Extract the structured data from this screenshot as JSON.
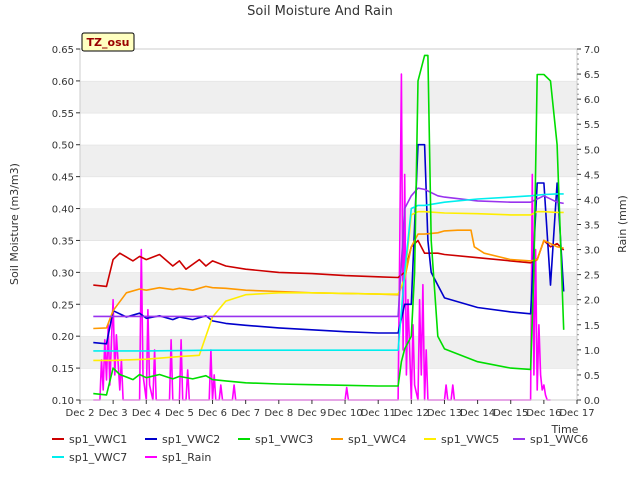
{
  "chart_data": {
    "type": "line",
    "title": "Soil Moisture And Rain",
    "badge": "TZ_osu",
    "xlabel": "Time",
    "ylabel_left": "Soil Moisture (m3/m3)",
    "ylabel_right": "Rain (mm)",
    "x_ticks": [
      "Dec 2",
      "Dec 3",
      "Dec 4",
      "Dec 5",
      "Dec 6",
      "Dec 7",
      "Dec 8",
      "Dec 9",
      "Dec 10",
      "Dec 11",
      "Dec 12",
      "Dec 13",
      "Dec 14",
      "Dec 15",
      "Dec 16",
      "Dec 17"
    ],
    "x_range_days": [
      2,
      17
    ],
    "y_left_range": [
      0.1,
      0.65
    ],
    "y_left_ticks": [
      "0.10",
      "0.15",
      "0.20",
      "0.25",
      "0.30",
      "0.35",
      "0.40",
      "0.45",
      "0.50",
      "0.55",
      "0.60",
      "0.65"
    ],
    "y_right_range": [
      0.0,
      7.0
    ],
    "y_right_ticks": [
      "0.0",
      "0.5",
      "1.0",
      "1.5",
      "2.0",
      "2.5",
      "3.0",
      "3.5",
      "4.0",
      "4.5",
      "5.0",
      "5.5",
      "6.0",
      "6.5",
      "7.0"
    ],
    "grid": "horizontal-bands",
    "legend_position": "bottom",
    "series": [
      {
        "name": "sp1_VWC1",
        "color": "#cc0000",
        "axis": "left",
        "x": [
          2.4,
          2.8,
          3.0,
          3.2,
          3.6,
          3.8,
          4.0,
          4.4,
          4.8,
          5.0,
          5.2,
          5.6,
          5.8,
          6.0,
          6.4,
          7.0,
          8.0,
          9.0,
          10.0,
          11.0,
          11.6,
          11.8,
          12.0,
          12.2,
          12.4,
          12.8,
          13.0,
          14.0,
          15.0,
          15.6,
          15.8,
          16.0,
          16.2,
          16.4,
          16.6
        ],
        "y": [
          0.28,
          0.278,
          0.32,
          0.33,
          0.318,
          0.325,
          0.32,
          0.328,
          0.31,
          0.318,
          0.305,
          0.32,
          0.31,
          0.318,
          0.31,
          0.305,
          0.3,
          0.298,
          0.295,
          0.293,
          0.292,
          0.3,
          0.34,
          0.35,
          0.33,
          0.33,
          0.328,
          0.323,
          0.318,
          0.315,
          0.32,
          0.35,
          0.34,
          0.345,
          0.335
        ]
      },
      {
        "name": "sp1_VWC2",
        "color": "#0000cc",
        "axis": "left",
        "x": [
          2.4,
          2.8,
          3.0,
          3.4,
          3.8,
          4.0,
          4.4,
          4.8,
          5.0,
          5.4,
          5.8,
          6.0,
          6.4,
          7.0,
          8.0,
          9.0,
          10.0,
          11.0,
          11.6,
          11.8,
          12.0,
          12.2,
          12.4,
          12.5,
          12.6,
          12.8,
          13.0,
          14.0,
          15.0,
          15.6,
          15.8,
          16.0,
          16.2,
          16.4,
          16.6
        ],
        "y": [
          0.19,
          0.188,
          0.24,
          0.23,
          0.236,
          0.228,
          0.232,
          0.226,
          0.23,
          0.226,
          0.232,
          0.224,
          0.22,
          0.217,
          0.213,
          0.21,
          0.207,
          0.205,
          0.205,
          0.25,
          0.25,
          0.5,
          0.5,
          0.35,
          0.3,
          0.28,
          0.26,
          0.245,
          0.238,
          0.235,
          0.44,
          0.44,
          0.28,
          0.44,
          0.27
        ]
      },
      {
        "name": "sp1_VWC3",
        "color": "#00dd00",
        "axis": "left",
        "x": [
          2.4,
          2.8,
          3.0,
          3.2,
          3.6,
          3.8,
          4.0,
          4.4,
          4.8,
          5.0,
          5.4,
          5.8,
          6.0,
          6.4,
          7.0,
          8.0,
          9.0,
          10.0,
          11.0,
          11.6,
          11.7,
          11.8,
          12.0,
          12.1,
          12.2,
          12.4,
          12.5,
          12.6,
          12.8,
          13.0,
          14.0,
          15.0,
          15.6,
          15.7,
          15.8,
          16.0,
          16.2,
          16.4,
          16.6
        ],
        "y": [
          0.11,
          0.108,
          0.15,
          0.14,
          0.132,
          0.14,
          0.135,
          0.14,
          0.133,
          0.137,
          0.133,
          0.138,
          0.132,
          0.13,
          0.127,
          0.125,
          0.124,
          0.123,
          0.122,
          0.122,
          0.16,
          0.18,
          0.2,
          0.3,
          0.6,
          0.64,
          0.64,
          0.35,
          0.2,
          0.18,
          0.16,
          0.15,
          0.148,
          0.3,
          0.61,
          0.61,
          0.6,
          0.5,
          0.21
        ]
      },
      {
        "name": "sp1_VWC4",
        "color": "#ff9900",
        "axis": "left",
        "x": [
          2.4,
          2.8,
          3.0,
          3.4,
          3.8,
          4.0,
          4.4,
          4.8,
          5.0,
          5.4,
          5.8,
          6.0,
          6.4,
          7.0,
          8.0,
          9.0,
          10.0,
          11.0,
          11.6,
          11.8,
          12.0,
          12.2,
          12.4,
          12.8,
          13.0,
          13.4,
          13.8,
          13.9,
          14.2,
          15.0,
          15.6,
          15.8,
          16.0,
          16.2,
          16.4,
          16.6
        ],
        "y": [
          0.212,
          0.213,
          0.24,
          0.268,
          0.274,
          0.272,
          0.276,
          0.273,
          0.275,
          0.272,
          0.278,
          0.276,
          0.275,
          0.272,
          0.27,
          0.268,
          0.267,
          0.266,
          0.265,
          0.29,
          0.34,
          0.36,
          0.36,
          0.362,
          0.365,
          0.366,
          0.366,
          0.34,
          0.33,
          0.32,
          0.318,
          0.32,
          0.35,
          0.345,
          0.34,
          0.338
        ]
      },
      {
        "name": "sp1_VWC5",
        "color": "#ffee00",
        "axis": "left",
        "x": [
          2.4,
          3.0,
          4.0,
          5.0,
          5.6,
          6.0,
          6.4,
          7.0,
          8.0,
          9.0,
          10.0,
          11.0,
          11.6,
          11.8,
          12.0,
          12.2,
          12.4,
          13.0,
          14.0,
          15.0,
          15.6,
          15.8,
          16.0,
          16.4,
          16.6
        ],
        "y": [
          0.162,
          0.162,
          0.164,
          0.168,
          0.17,
          0.23,
          0.255,
          0.265,
          0.268,
          0.268,
          0.267,
          0.266,
          0.266,
          0.29,
          0.39,
          0.395,
          0.395,
          0.393,
          0.392,
          0.39,
          0.39,
          0.395,
          0.395,
          0.394,
          0.394
        ]
      },
      {
        "name": "sp1_VWC6",
        "color": "#9933ee",
        "axis": "left",
        "x": [
          2.4,
          4.0,
          6.0,
          8.0,
          10.0,
          11.0,
          11.6,
          11.8,
          12.0,
          12.2,
          12.4,
          12.8,
          13.0,
          14.0,
          15.0,
          15.6,
          15.8,
          16.0,
          16.4,
          16.6
        ],
        "y": [
          0.231,
          0.231,
          0.231,
          0.231,
          0.231,
          0.231,
          0.231,
          0.4,
          0.42,
          0.432,
          0.43,
          0.42,
          0.418,
          0.412,
          0.41,
          0.41,
          0.415,
          0.42,
          0.41,
          0.408
        ]
      },
      {
        "name": "sp1_VWC7",
        "color": "#00eeee",
        "axis": "left",
        "x": [
          2.4,
          4.0,
          6.0,
          8.0,
          10.0,
          11.0,
          11.6,
          11.8,
          12.0,
          12.2,
          12.4,
          13.0,
          14.0,
          15.0,
          15.6,
          16.0,
          16.4,
          16.6
        ],
        "y": [
          0.177,
          0.177,
          0.178,
          0.178,
          0.178,
          0.178,
          0.178,
          0.3,
          0.4,
          0.405,
          0.405,
          0.41,
          0.415,
          0.418,
          0.42,
          0.422,
          0.423,
          0.423
        ]
      },
      {
        "name": "sp1_Rain",
        "color": "#ff00ff",
        "axis": "right",
        "x": [
          2.4,
          2.6,
          2.65,
          2.7,
          2.75,
          2.8,
          2.85,
          2.9,
          2.95,
          3.0,
          3.05,
          3.1,
          3.2,
          3.25,
          3.3,
          3.8,
          3.85,
          3.9,
          4.0,
          4.05,
          4.1,
          4.2,
          4.25,
          4.3,
          4.4,
          4.7,
          4.75,
          4.8,
          5.0,
          5.05,
          5.1,
          5.2,
          5.25,
          5.3,
          5.4,
          5.9,
          5.95,
          6.0,
          6.05,
          6.1,
          6.2,
          6.25,
          6.3,
          6.4,
          6.6,
          6.65,
          6.7,
          10.0,
          10.05,
          10.1,
          11.6,
          11.65,
          11.7,
          11.75,
          11.8,
          11.85,
          11.9,
          12.0,
          12.05,
          12.1,
          12.2,
          12.25,
          12.3,
          12.35,
          12.4,
          12.45,
          12.5,
          12.6,
          13.0,
          13.05,
          13.1,
          13.2,
          13.25,
          13.3,
          15.6,
          15.65,
          15.7,
          15.75,
          15.8,
          15.85,
          15.9,
          15.95,
          16.0,
          16.05,
          16.1,
          16.2
        ],
        "y": [
          0.0,
          0.0,
          0.8,
          0.2,
          1.2,
          0.4,
          1.5,
          0.3,
          1.2,
          2.0,
          0.5,
          1.3,
          0.2,
          0.8,
          0.0,
          0.0,
          3.0,
          0.5,
          0.0,
          1.8,
          0.3,
          0.0,
          1.0,
          0.0,
          0.0,
          0.0,
          1.2,
          0.0,
          0.0,
          1.2,
          0.0,
          0.0,
          0.6,
          0.0,
          0.0,
          0.0,
          1.0,
          0.0,
          0.5,
          0.0,
          0.0,
          0.3,
          0.0,
          0.0,
          0.0,
          0.3,
          0.0,
          0.0,
          0.25,
          0.0,
          0.0,
          3.0,
          6.5,
          1.0,
          4.5,
          0.5,
          2.0,
          0.0,
          1.5,
          0.3,
          0.0,
          2.0,
          0.5,
          2.3,
          0.0,
          1.0,
          0.0,
          0.0,
          0.0,
          0.3,
          0.0,
          0.0,
          0.3,
          0.0,
          0.0,
          4.5,
          0.5,
          3.0,
          0.2,
          1.5,
          0.5,
          0.2,
          0.3,
          0.1,
          0.0,
          0.0
        ]
      }
    ]
  }
}
